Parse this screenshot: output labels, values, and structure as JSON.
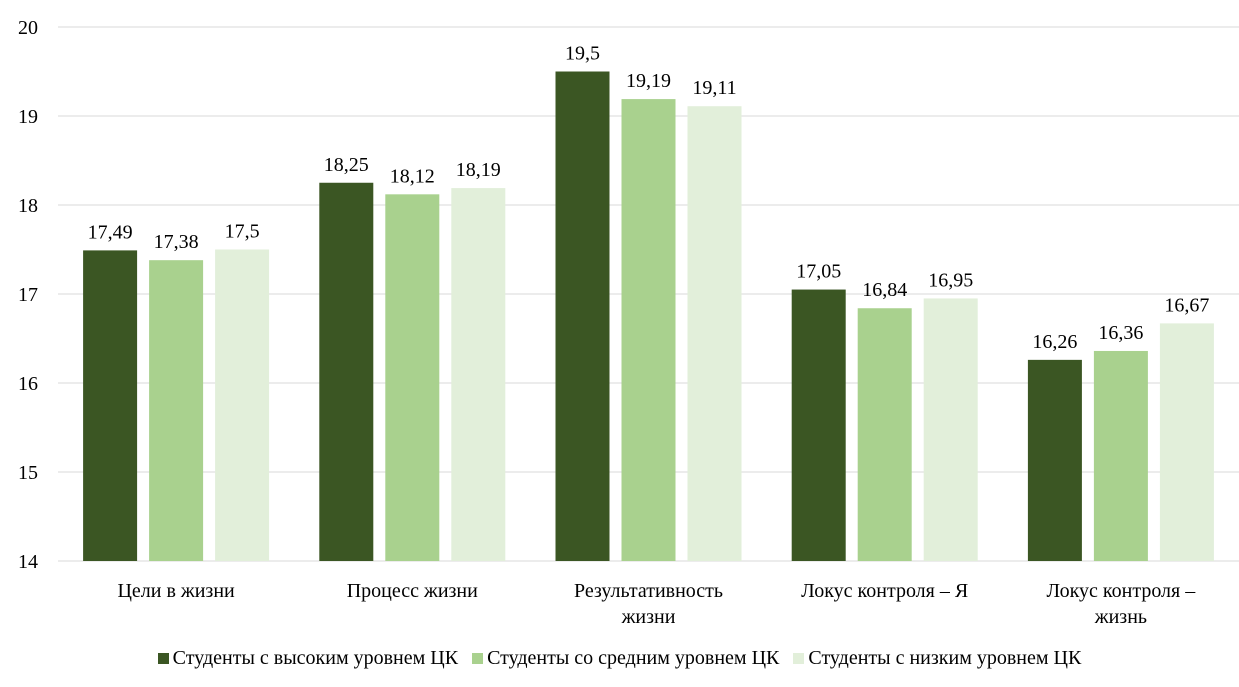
{
  "chart_data": {
    "type": "bar",
    "title": "",
    "xlabel": "",
    "ylabel": "",
    "ylim": [
      14,
      20
    ],
    "yticks": [
      14,
      15,
      16,
      17,
      18,
      19,
      20
    ],
    "grid": true,
    "legend_position": "bottom",
    "categories": [
      [
        "Цели в жизни"
      ],
      [
        "Процесс жизни"
      ],
      [
        "Результативность",
        "жизни"
      ],
      [
        "Локус контроля – Я"
      ],
      [
        "Локус контроля –",
        "жизнь"
      ]
    ],
    "series": [
      {
        "name": "Студенты с высоким уровнем ЦК",
        "color": "#3b5623",
        "values": [
          17.49,
          18.25,
          19.5,
          17.05,
          16.26
        ],
        "labels": [
          "17,49",
          "18,25",
          "19,5",
          "17,05",
          "16,26"
        ]
      },
      {
        "name": "Студенты со средним уровнем ЦК",
        "color": "#a9d18e",
        "values": [
          17.38,
          18.12,
          19.19,
          16.84,
          16.36
        ],
        "labels": [
          "17,38",
          "18,12",
          "19,19",
          "16,84",
          "16,36"
        ]
      },
      {
        "name": "Студенты с низким уровнем ЦК",
        "color": "#e2efda",
        "values": [
          17.5,
          18.19,
          19.11,
          16.95,
          16.67
        ],
        "labels": [
          "17,5",
          "18,19",
          "19,11",
          "16,95",
          "16,67"
        ]
      }
    ]
  }
}
